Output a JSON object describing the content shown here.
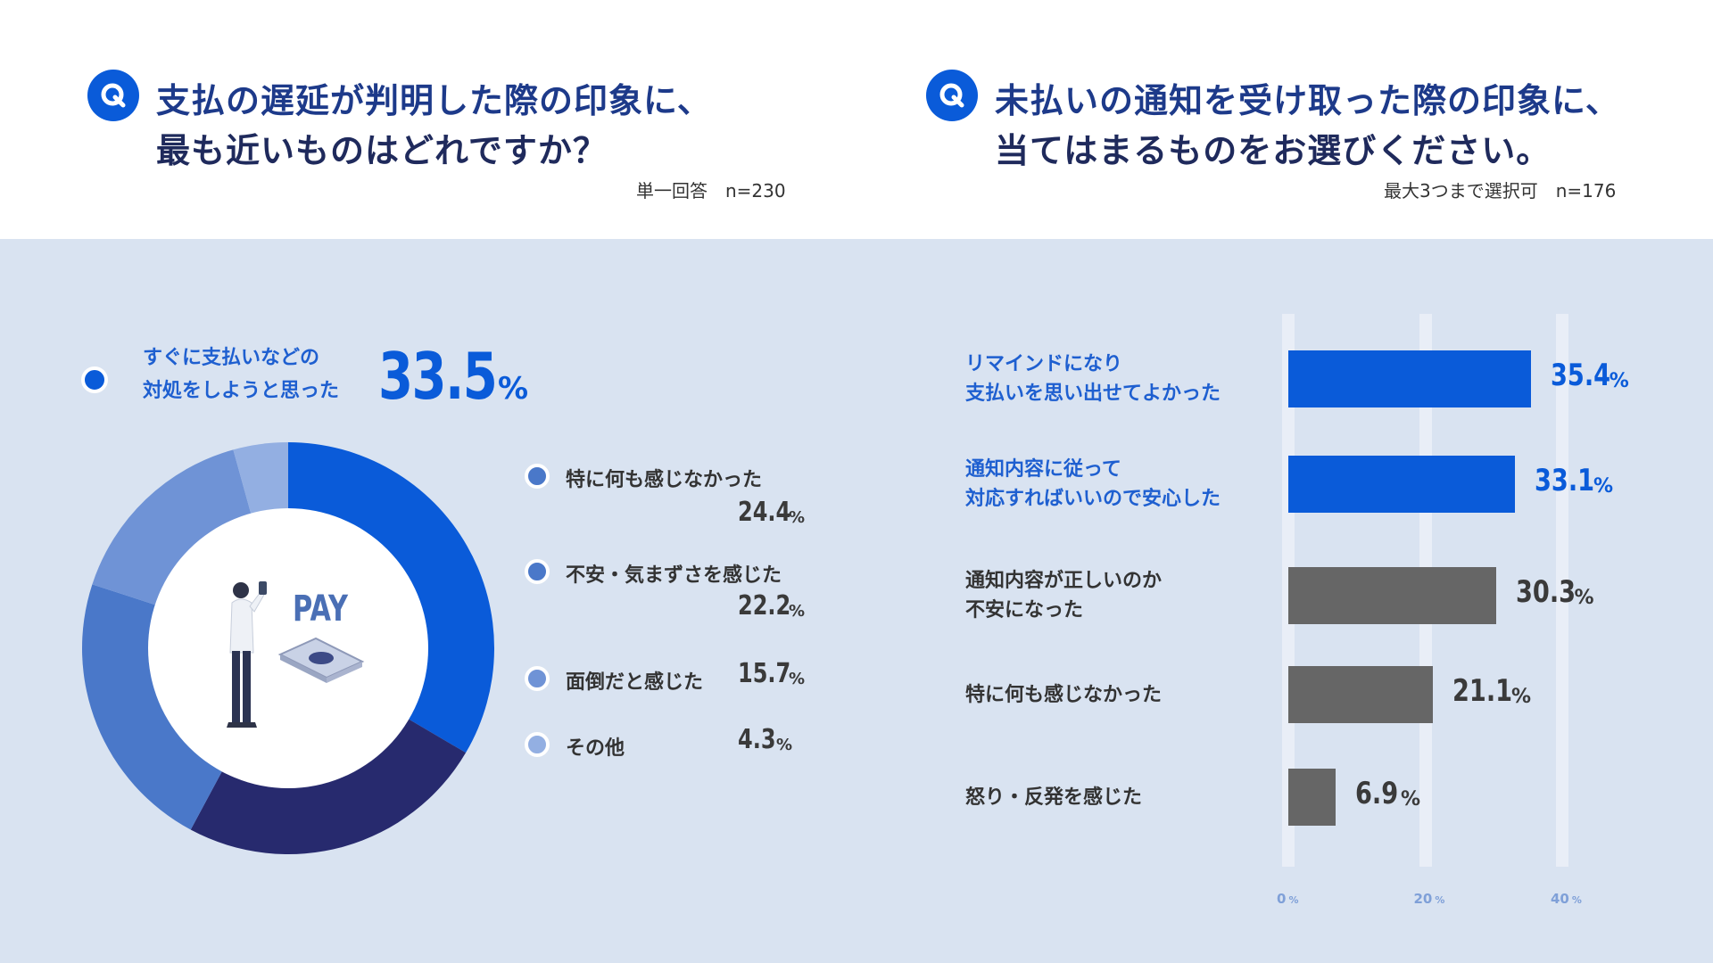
{
  "left": {
    "question_line1": "支払の遅延が判明した際の印象に、",
    "question_line2": "最も近いものはどれですか？",
    "meta": "単一回答　n=230",
    "lead": {
      "label_line1": "すぐに支払いなどの",
      "label_line2": "対処をしようと思った",
      "value": "33.5",
      "unit": "%"
    },
    "illustration_text": "PAY",
    "legend": [
      {
        "label": "特に何も感じなかった",
        "value": "24.4",
        "unit": "%"
      },
      {
        "label": "不安・気まずさを感じた",
        "value": "22.2",
        "unit": "%"
      },
      {
        "label": "面倒だと感じた",
        "value": "15.7",
        "unit": "%"
      },
      {
        "label": "その他",
        "value": "4.3",
        "unit": "%"
      }
    ]
  },
  "right": {
    "question_line1": "未払いの通知を受け取った際の印象に、",
    "question_line2": "当てはまるものをお選びください。",
    "meta": "最大3つまで選択可　n=176",
    "axis_ticks": [
      {
        "value": "0",
        "unit": "%"
      },
      {
        "value": "20",
        "unit": "%"
      },
      {
        "value": "40",
        "unit": "%"
      }
    ],
    "bars": [
      {
        "label_line1": "リマインドになり",
        "label_line2": "支払いを思い出せてよかった",
        "value": "35.4",
        "unit": "%"
      },
      {
        "label_line1": "通知内容に従って",
        "label_line2": "対応すればいいので安心した",
        "value": "33.1",
        "unit": "%"
      },
      {
        "label_line1": "通知内容が正しいのか",
        "label_line2": "不安になった",
        "value": "30.3",
        "unit": "%"
      },
      {
        "label_line1": "特に何も感じなかった",
        "label_line2": "",
        "value": "21.1",
        "unit": "%"
      },
      {
        "label_line1": "怒り・反発を感じた",
        "label_line2": "",
        "value": "6.9",
        "unit": "%"
      }
    ]
  },
  "colors": {
    "accent_blue": "#0a5bd9",
    "navy": "#272a6e",
    "mid_blue": "#4a78c9",
    "light_blue": "#6f93d6",
    "pale_blue": "#93afe2",
    "gray_bar": "#666666",
    "panel_bg": "#d9e3f1"
  },
  "chart_data": [
    {
      "type": "pie",
      "title": "支払の遅延が判明した際の印象に、最も近いものはどれですか？",
      "categories": [
        "すぐに支払いなどの対処をしようと思った",
        "特に何も感じなかった",
        "不安・気まずさを感じた",
        "面倒だと感じた",
        "その他"
      ],
      "values": [
        33.5,
        24.4,
        22.2,
        15.7,
        4.3
      ],
      "colors": [
        "#0a5bd9",
        "#272a6e",
        "#4a78c9",
        "#6f93d6",
        "#93afe2"
      ]
    },
    {
      "type": "bar",
      "orientation": "horizontal",
      "title": "未払いの通知を受け取った際の印象に、当てはまるものをお選びください。",
      "categories": [
        "リマインドになり支払いを思い出せてよかった",
        "通知内容に従って対応すればいいので安心した",
        "通知内容が正しいのか不安になった",
        "特に何も感じなかった",
        "怒り・反発を感じた"
      ],
      "values": [
        35.4,
        33.1,
        30.3,
        21.1,
        6.9
      ],
      "colors": [
        "#0a5bd9",
        "#0a5bd9",
        "#666666",
        "#666666",
        "#666666"
      ],
      "xlim": [
        0,
        40
      ],
      "grid": true
    }
  ]
}
